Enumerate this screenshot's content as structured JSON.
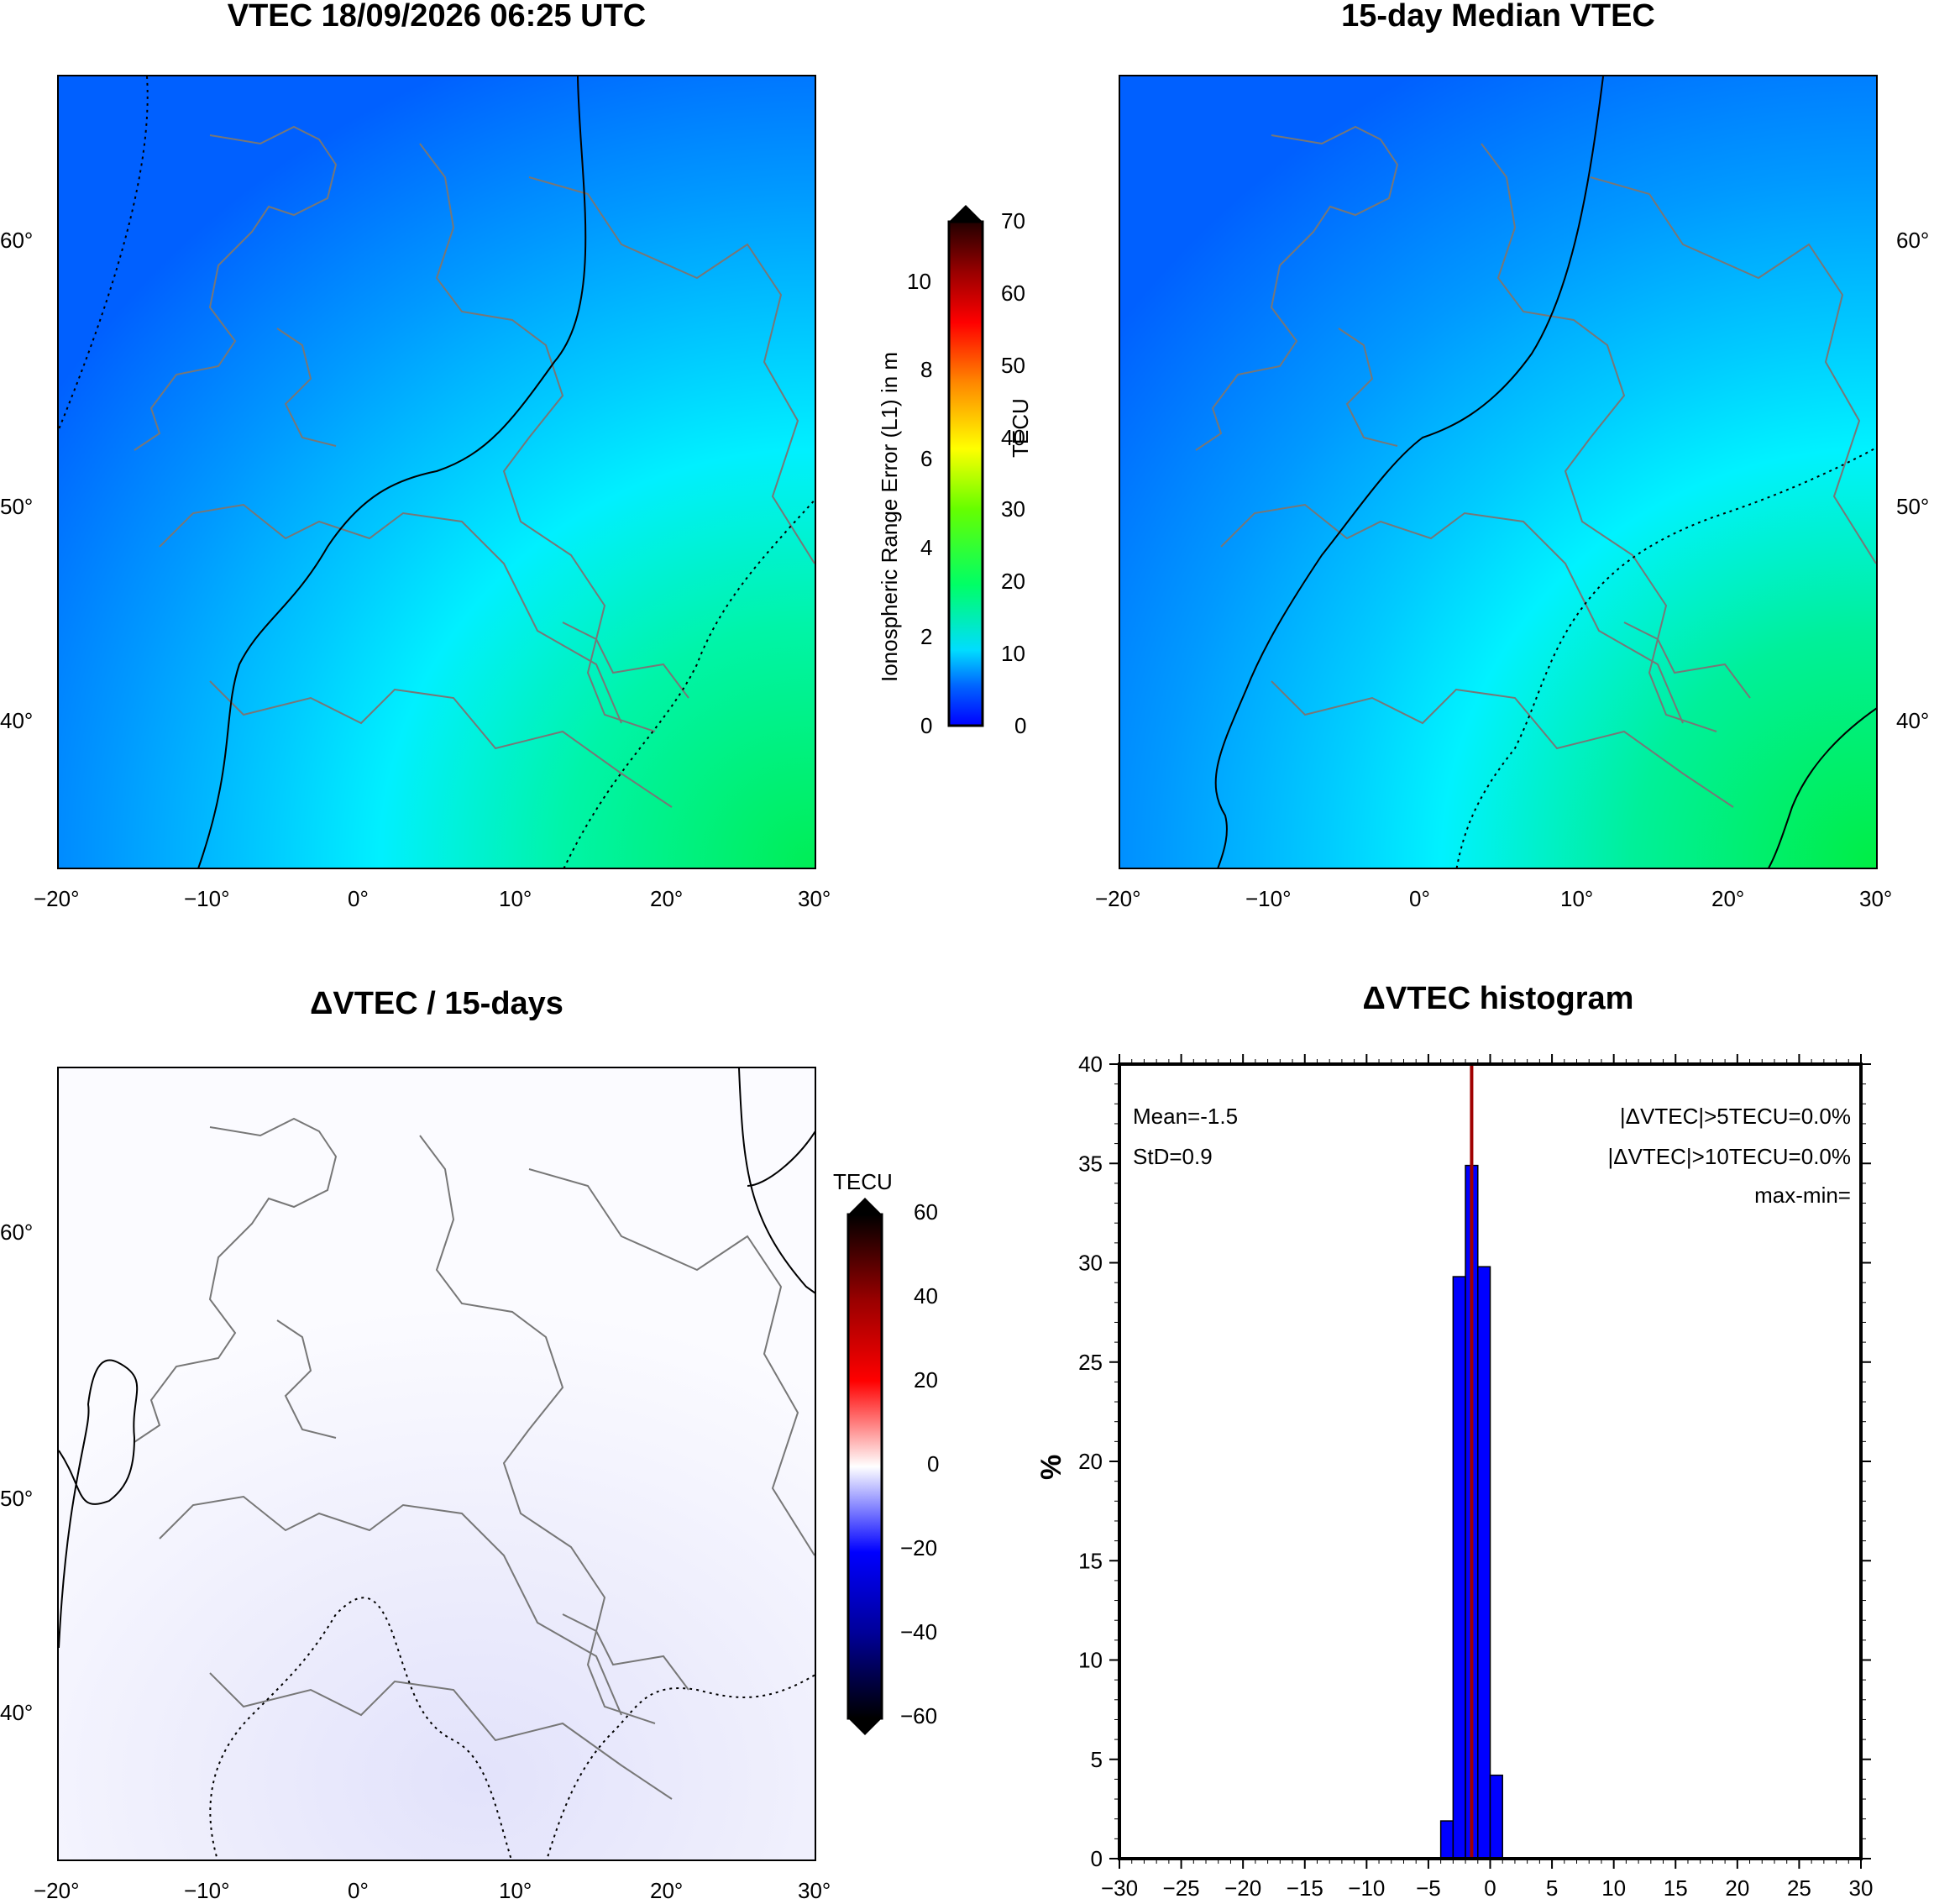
{
  "panels": {
    "vtec": {
      "title": "VTEC 18/09/2026 06:25 UTC"
    },
    "median": {
      "title": "15-day Median VTEC"
    },
    "delta": {
      "title": "ΔVTEC / 15-days"
    },
    "histogram": {
      "title": "ΔVTEC histogram"
    }
  },
  "map_axes": {
    "lon_ticks": [
      "−20°",
      "−10°",
      "0°",
      "10°",
      "20°",
      "30°"
    ],
    "lat_ticks": [
      "60°",
      "50°",
      "40°"
    ]
  },
  "colorbar_vtec": {
    "unit_label": "TECU",
    "range_label": "Ionospheric Range Error (L1) in m",
    "tecu_ticks": [
      "70",
      "60",
      "50",
      "40",
      "30",
      "20",
      "10",
      "0"
    ],
    "meter_ticks": [
      "10",
      "8",
      "6",
      "4",
      "2",
      "0"
    ]
  },
  "colorbar_delta": {
    "unit_label": "TECU",
    "ticks": [
      "60",
      "40",
      "20",
      "0",
      "−20",
      "−40",
      "−60"
    ]
  },
  "histogram_stats": {
    "mean": "Mean=-1.5",
    "std": "StD=0.9",
    "gt5": "|ΔVTEC|>5TECU=0.0%",
    "gt10": "|ΔVTEC|>10TECU=0.0%",
    "maxmin": "max-min="
  },
  "chart_data": {
    "type": "bar",
    "title": "ΔVTEC histogram",
    "xlabel": "",
    "ylabel": "%",
    "xlim": [
      -30,
      30
    ],
    "ylim": [
      0,
      40
    ],
    "x_ticks": [
      -30,
      -25,
      -20,
      -15,
      -10,
      -5,
      0,
      5,
      10,
      15,
      20,
      25,
      30
    ],
    "y_ticks": [
      0,
      5,
      10,
      15,
      20,
      25,
      30,
      35,
      40
    ],
    "bins": [
      {
        "x0": -4,
        "x1": -3,
        "value": 1.9
      },
      {
        "x0": -3,
        "x1": -2,
        "value": 29.3
      },
      {
        "x0": -2,
        "x1": -1,
        "value": 34.9
      },
      {
        "x0": -1,
        "x1": 0,
        "value": 29.8
      },
      {
        "x0": 0,
        "x1": 1,
        "value": 4.2
      }
    ],
    "mean_line": -1.5,
    "bar_color": "#0000ff",
    "mean_line_color": "#a00000"
  }
}
